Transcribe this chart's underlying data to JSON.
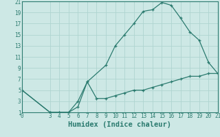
{
  "xlabel": "Humidex (Indice chaleur)",
  "background_color": "#cde8e5",
  "grid_color": "#afd4d0",
  "line_color": "#2a7a6e",
  "xlim": [
    0,
    21
  ],
  "ylim": [
    1,
    21
  ],
  "xticks": [
    0,
    3,
    4,
    5,
    6,
    7,
    8,
    9,
    10,
    11,
    12,
    13,
    14,
    15,
    16,
    17,
    18,
    19,
    20,
    21
  ],
  "yticks": [
    1,
    3,
    5,
    7,
    9,
    11,
    13,
    15,
    17,
    19,
    21
  ],
  "line1_x": [
    0,
    3,
    4,
    5,
    6,
    7,
    9,
    10,
    11,
    12,
    13,
    14,
    15,
    16,
    17,
    18,
    19,
    20,
    21
  ],
  "line1_y": [
    5,
    1,
    1,
    1,
    3,
    6.5,
    9.5,
    13,
    15,
    17,
    19.2,
    19.5,
    20.8,
    20.3,
    18,
    15.5,
    14,
    10,
    8
  ],
  "line2_x": [
    0,
    3,
    4,
    5,
    6,
    7,
    8,
    9,
    10,
    11,
    12,
    13,
    14,
    15,
    16,
    17,
    18,
    19,
    20,
    21
  ],
  "line2_y": [
    5,
    1,
    1,
    1,
    2,
    6.5,
    3.5,
    3.5,
    4,
    4.5,
    5,
    5,
    5.5,
    6,
    6.5,
    7,
    7.5,
    7.5,
    8,
    8
  ],
  "tick_fontsize": 5.5,
  "xlabel_fontsize": 7.5,
  "marker": "+"
}
